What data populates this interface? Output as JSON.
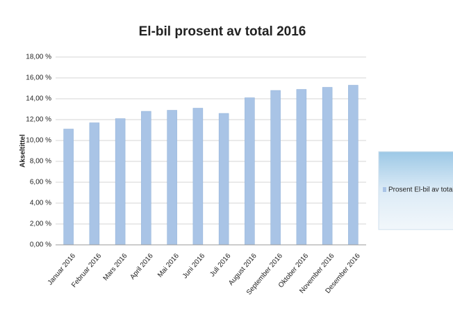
{
  "chart_data": {
    "type": "bar",
    "title": "El-bil prosent av total 2016",
    "y_label": "Akseltittel",
    "categories": [
      "Januar 2016",
      "Februar 2016",
      "Mars 2016",
      "April 2016",
      "Mai 2016",
      "Juni 2016",
      "Juli 2016",
      "August 2016",
      "September 2016",
      "Oktober 2016",
      "November 2016",
      "Desember 2016"
    ],
    "series": [
      {
        "name": "Prosent El-bil av total",
        "color": "#a9c4e6",
        "values": [
          11.1,
          11.7,
          12.1,
          12.8,
          12.9,
          13.1,
          12.6,
          14.1,
          14.8,
          14.9,
          15.1,
          15.3
        ]
      }
    ],
    "ylim": [
      0,
      18
    ],
    "yticks": [
      {
        "value": 0,
        "label": "0,00 %"
      },
      {
        "value": 2,
        "label": "2,00 %"
      },
      {
        "value": 4,
        "label": "4,00 %"
      },
      {
        "value": 6,
        "label": "6,00 %"
      },
      {
        "value": 8,
        "label": "8,00 %"
      },
      {
        "value": 10,
        "label": "10,00 %"
      },
      {
        "value": 12,
        "label": "12,00 %"
      },
      {
        "value": 14,
        "label": "14,00 %"
      },
      {
        "value": 16,
        "label": "16,00 %"
      },
      {
        "value": 18,
        "label": "18,00 %"
      }
    ],
    "grid": true,
    "legend": "right"
  }
}
